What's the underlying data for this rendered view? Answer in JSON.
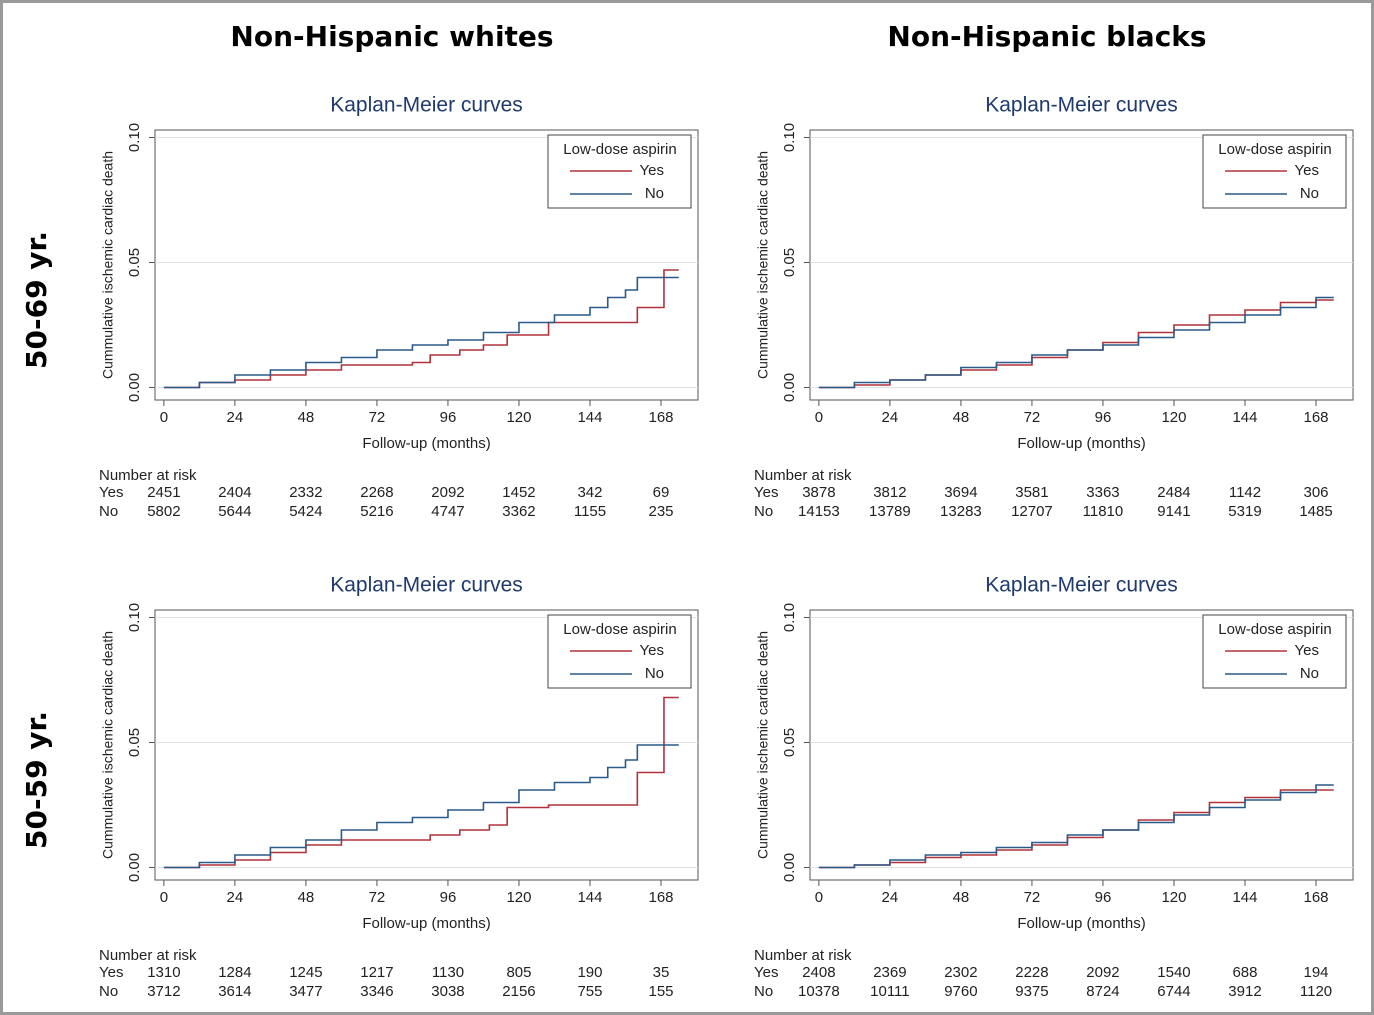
{
  "column_headers": [
    "Non-Hispanic whites",
    "Non-Hispanic blacks"
  ],
  "row_headers": [
    "50-69 yr.",
    "50-59 yr."
  ],
  "chart_data": [
    {
      "type": "line",
      "step": true,
      "title": "Kaplan-Meier curves",
      "x_label": "Follow-up (months)",
      "y_label": "Cummulative ischemic cardiac death",
      "xlim": [
        -3,
        180.5
      ],
      "xticks": [
        0,
        24,
        48,
        72,
        96,
        120,
        144,
        168
      ],
      "ylim": [
        -0.005,
        0.103
      ],
      "yticks": [
        {
          "value": 0,
          "label": "0.00"
        },
        {
          "value": 0.05,
          "label": "0.05"
        },
        {
          "value": 0.1,
          "label": "0.10"
        }
      ],
      "grid": true,
      "legend_title": "Low-dose aspirin",
      "legend_position": "upper-right",
      "series": [
        {
          "name": "Yes",
          "color": "#b2323c",
          "x": [
            0,
            12,
            24,
            36,
            48,
            60,
            72,
            84,
            90,
            100,
            108,
            116,
            130,
            160,
            169,
            174
          ],
          "values": [
            0,
            0.002,
            0.003,
            0.005,
            0.007,
            0.009,
            0.009,
            0.01,
            0.013,
            0.015,
            0.017,
            0.021,
            0.026,
            0.032,
            0.047,
            0.047
          ]
        },
        {
          "name": "No",
          "color": "#2a5a8a",
          "x": [
            0,
            12,
            24,
            36,
            48,
            60,
            72,
            84,
            96,
            108,
            120,
            132,
            144,
            150,
            156,
            160,
            168,
            174
          ],
          "values": [
            0,
            0.002,
            0.005,
            0.007,
            0.01,
            0.012,
            0.015,
            0.017,
            0.019,
            0.022,
            0.026,
            0.029,
            0.032,
            0.036,
            0.039,
            0.044,
            0.044,
            0.044
          ]
        }
      ],
      "risk_table": {
        "title": "Number at risk",
        "rows": [
          {
            "label": "Yes",
            "values": [
              2451,
              2404,
              2332,
              2268,
              2092,
              1452,
              342,
              69
            ]
          },
          {
            "label": "No",
            "values": [
              5802,
              5644,
              5424,
              5216,
              4747,
              3362,
              1155,
              235
            ]
          }
        ]
      }
    },
    {
      "type": "line",
      "step": true,
      "title": "Kaplan-Meier curves",
      "x_label": "Follow-up (months)",
      "y_label": "Cummulative ischemic cardiac death",
      "xlim": [
        -3,
        180.5
      ],
      "xticks": [
        0,
        24,
        48,
        72,
        96,
        120,
        144,
        168
      ],
      "ylim": [
        -0.005,
        0.103
      ],
      "yticks": [
        {
          "value": 0,
          "label": "0.00"
        },
        {
          "value": 0.05,
          "label": "0.05"
        },
        {
          "value": 0.1,
          "label": "0.10"
        }
      ],
      "grid": true,
      "legend_title": "Low-dose aspirin",
      "legend_position": "upper-right",
      "series": [
        {
          "name": "Yes",
          "color": "#b2323c",
          "x": [
            0,
            12,
            24,
            36,
            48,
            60,
            72,
            84,
            96,
            108,
            120,
            132,
            144,
            156,
            168,
            174
          ],
          "values": [
            0,
            0.001,
            0.003,
            0.005,
            0.007,
            0.009,
            0.012,
            0.015,
            0.018,
            0.022,
            0.025,
            0.029,
            0.031,
            0.034,
            0.035,
            0.035
          ]
        },
        {
          "name": "No",
          "color": "#2a5a8a",
          "x": [
            0,
            12,
            24,
            36,
            48,
            60,
            72,
            84,
            96,
            108,
            120,
            132,
            144,
            156,
            168,
            174
          ],
          "values": [
            0,
            0.002,
            0.003,
            0.005,
            0.008,
            0.01,
            0.013,
            0.015,
            0.017,
            0.02,
            0.023,
            0.026,
            0.029,
            0.032,
            0.036,
            0.036
          ]
        }
      ],
      "risk_table": {
        "title": "Number at risk",
        "rows": [
          {
            "label": "Yes",
            "values": [
              3878,
              3812,
              3694,
              3581,
              3363,
              2484,
              1142,
              306
            ]
          },
          {
            "label": "No",
            "values": [
              14153,
              13789,
              13283,
              12707,
              11810,
              9141,
              5319,
              1485
            ]
          }
        ]
      }
    },
    {
      "type": "line",
      "step": true,
      "title": "Kaplan-Meier curves",
      "x_label": "Follow-up (months)",
      "y_label": "Cummulative ischemic cardiac death",
      "xlim": [
        -3,
        180.5
      ],
      "xticks": [
        0,
        24,
        48,
        72,
        96,
        120,
        144,
        168
      ],
      "ylim": [
        -0.005,
        0.103
      ],
      "yticks": [
        {
          "value": 0,
          "label": "0.00"
        },
        {
          "value": 0.05,
          "label": "0.05"
        },
        {
          "value": 0.1,
          "label": "0.10"
        }
      ],
      "grid": true,
      "legend_title": "Low-dose aspirin",
      "legend_position": "upper-right",
      "series": [
        {
          "name": "Yes",
          "color": "#b2323c",
          "x": [
            0,
            12,
            24,
            36,
            48,
            60,
            72,
            84,
            90,
            100,
            110,
            116,
            130,
            160,
            169,
            174
          ],
          "values": [
            0,
            0.001,
            0.003,
            0.006,
            0.009,
            0.011,
            0.011,
            0.011,
            0.013,
            0.015,
            0.017,
            0.024,
            0.025,
            0.038,
            0.068,
            0.068
          ]
        },
        {
          "name": "No",
          "color": "#2a5a8a",
          "x": [
            0,
            12,
            24,
            36,
            48,
            60,
            72,
            84,
            96,
            108,
            120,
            132,
            144,
            150,
            156,
            160,
            168,
            174
          ],
          "values": [
            0,
            0.002,
            0.005,
            0.008,
            0.011,
            0.015,
            0.018,
            0.02,
            0.023,
            0.026,
            0.031,
            0.034,
            0.036,
            0.04,
            0.043,
            0.049,
            0.049,
            0.049
          ]
        }
      ],
      "risk_table": {
        "title": "Number at risk",
        "rows": [
          {
            "label": "Yes",
            "values": [
              1310,
              1284,
              1245,
              1217,
              1130,
              805,
              190,
              35
            ]
          },
          {
            "label": "No",
            "values": [
              3712,
              3614,
              3477,
              3346,
              3038,
              2156,
              755,
              155
            ]
          }
        ]
      }
    },
    {
      "type": "line",
      "step": true,
      "title": "Kaplan-Meier curves",
      "x_label": "Follow-up (months)",
      "y_label": "Cummulative ischemic cardiac death",
      "xlim": [
        -3,
        180.5
      ],
      "xticks": [
        0,
        24,
        48,
        72,
        96,
        120,
        144,
        168
      ],
      "ylim": [
        -0.005,
        0.103
      ],
      "yticks": [
        {
          "value": 0,
          "label": "0.00"
        },
        {
          "value": 0.05,
          "label": "0.05"
        },
        {
          "value": 0.1,
          "label": "0.10"
        }
      ],
      "grid": true,
      "legend_title": "Low-dose aspirin",
      "legend_position": "upper-right",
      "series": [
        {
          "name": "Yes",
          "color": "#b2323c",
          "x": [
            0,
            12,
            24,
            36,
            48,
            60,
            72,
            84,
            96,
            108,
            120,
            132,
            144,
            156,
            168,
            174
          ],
          "values": [
            0,
            0.001,
            0.002,
            0.004,
            0.005,
            0.007,
            0.009,
            0.012,
            0.015,
            0.019,
            0.022,
            0.026,
            0.028,
            0.031,
            0.031,
            0.031
          ]
        },
        {
          "name": "No",
          "color": "#2a5a8a",
          "x": [
            0,
            12,
            24,
            36,
            48,
            60,
            72,
            84,
            96,
            108,
            120,
            132,
            144,
            156,
            168,
            174
          ],
          "values": [
            0,
            0.001,
            0.003,
            0.005,
            0.006,
            0.008,
            0.01,
            0.013,
            0.015,
            0.018,
            0.021,
            0.024,
            0.027,
            0.03,
            0.033,
            0.033
          ]
        }
      ],
      "risk_table": {
        "title": "Number at risk",
        "rows": [
          {
            "label": "Yes",
            "values": [
              2408,
              2369,
              2302,
              2228,
              2092,
              1540,
              688,
              194
            ]
          },
          {
            "label": "No",
            "values": [
              10378,
              10111,
              9760,
              9375,
              8724,
              6744,
              3912,
              1120
            ]
          }
        ]
      }
    }
  ]
}
